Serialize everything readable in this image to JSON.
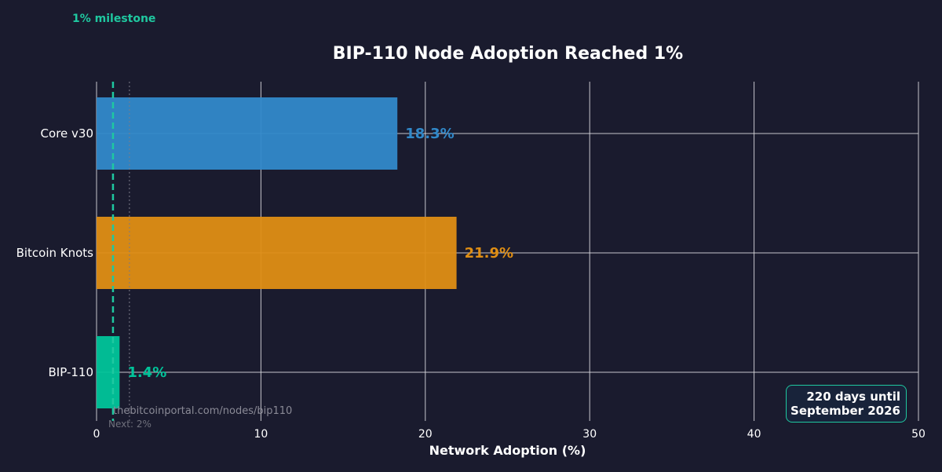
{
  "milestone_label": "1% milestone",
  "source_text": "thebitcoinportal.com/nodes/bip110",
  "next_text": "Next: 2%",
  "countdown": {
    "line1": "220 days until",
    "line2": "September 2026"
  },
  "colors": {
    "core": "#3189ca",
    "knots": "#df8e14",
    "bip110": "#00c49a",
    "milestone": "#1fc8a0",
    "background": "#1a1b2e"
  },
  "chart_data": {
    "type": "bar",
    "orientation": "horizontal",
    "title": "BIP-110 Node Adoption Reached 1%",
    "xlabel": "Network Adoption (%)",
    "ylabel": "",
    "xlim": [
      0,
      50
    ],
    "xticks": [
      0,
      10,
      20,
      30,
      40,
      50
    ],
    "grid": true,
    "categories": [
      "Core v30",
      "Bitcoin Knots",
      "BIP-110"
    ],
    "values": [
      18.3,
      21.9,
      1.4
    ],
    "value_labels": [
      "18.3%",
      "21.9%",
      "1.4%"
    ],
    "bar_colors": [
      "#3189ca",
      "#df8e14",
      "#00c49a"
    ],
    "reference_lines": [
      {
        "value": 1,
        "style": "dashed",
        "color": "#1fc8a0",
        "label": "1% milestone"
      },
      {
        "value": 2,
        "style": "dotted",
        "color": "#7a7b88",
        "label": "Next: 2%"
      }
    ]
  }
}
